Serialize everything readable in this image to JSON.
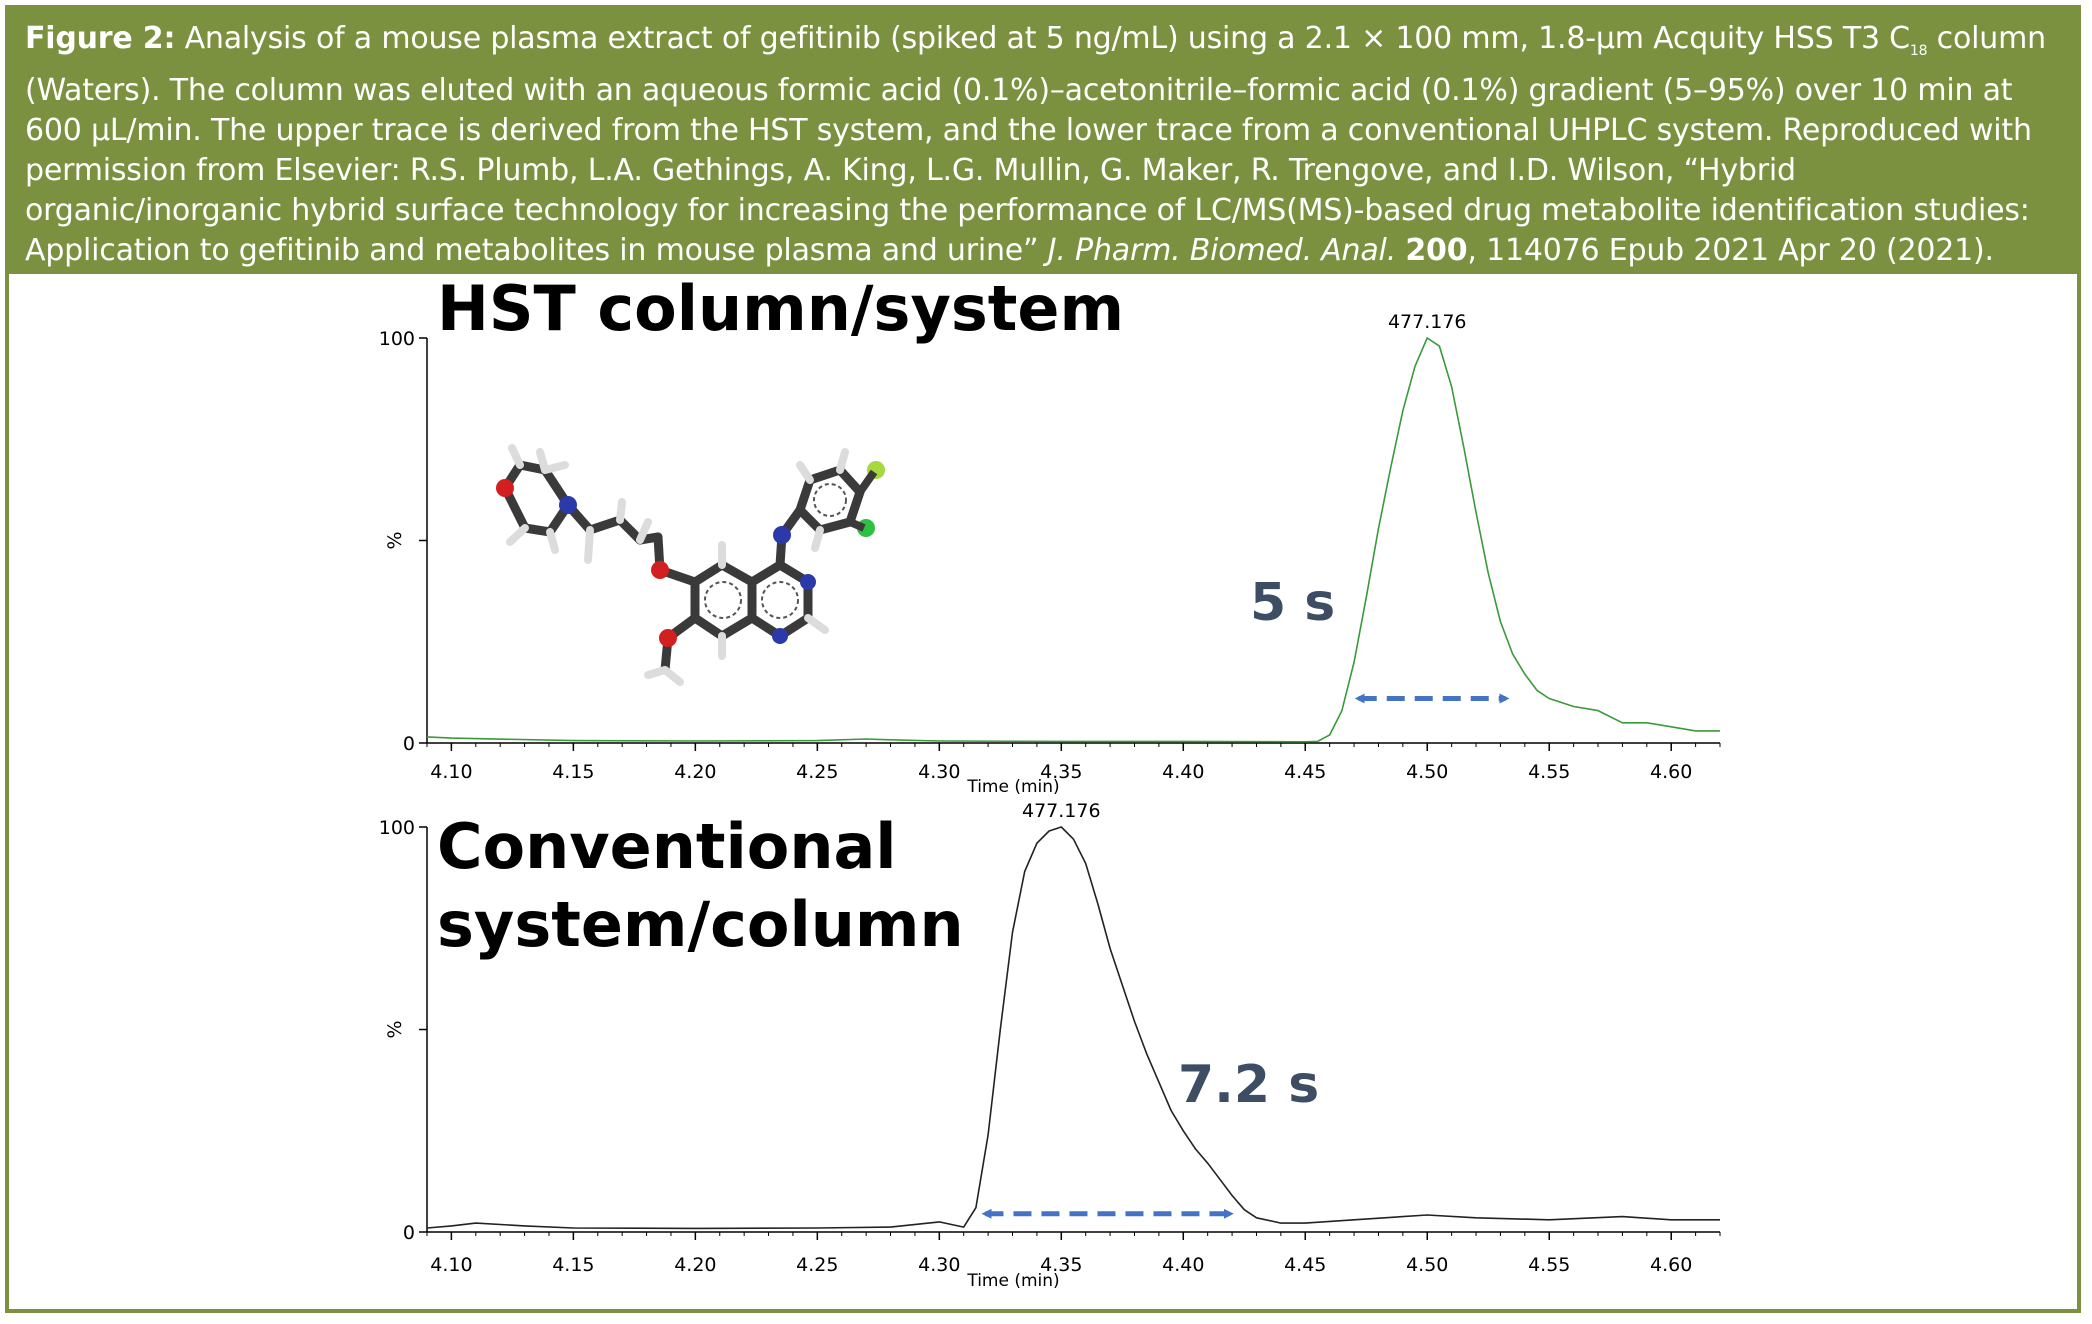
{
  "caption": {
    "label": "Figure 2:",
    "line1": " Analysis of a mouse plasma extract of gefitinib (spiked at 5 ng/mL) using a 2.1 × 100 mm, 1.8-µm Acquity HSS T3 C",
    "subscript": "18",
    "line1b": " column (Waters). The column was eluted with an aqueous formic acid (0.1%)–acetonitrile–formic acid (0.1%) gradient (5–95%) over 10 min at 600 µL/min. The upper trace is derived from the HST system, and the lower trace from a conventional UHPLC system. Reproduced with permission from Elsevier: R.S. Plumb, L.A. Gethings, A. King, L.G. Mullin, G. Maker, R. Trengove, and I.D. Wilson, “Hybrid organic/inorganic hybrid surface technology for increasing the performance of LC/MS(MS)-based drug metabolite identification studies: Application to gefitinib and metabolites in mouse plasma and urine” ",
    "journal": "J. Pharm. Biomed. Anal.",
    "volume": "200",
    "tail": ", 114076 Epub 2021 Apr 20 (2021)."
  },
  "colors": {
    "accent": "#7b9140",
    "hst_trace": "#3a9a3a",
    "conv_trace": "#222222",
    "arrow": "#4472c4",
    "width_label": "#3d4d63"
  },
  "chart_data": [
    {
      "type": "line",
      "title": "HST column/system",
      "xlabel": "Time (min)",
      "ylabel": "%",
      "xlim": [
        4.09,
        4.62
      ],
      "ylim": [
        0,
        100
      ],
      "x_ticks": [
        "4.10",
        "4.15",
        "4.20",
        "4.25",
        "4.30",
        "4.35",
        "4.40",
        "4.45",
        "4.50",
        "4.55",
        "4.60"
      ],
      "y_ticks": [
        "0",
        "100"
      ],
      "peak_label": "477.176",
      "width_label": "5 s",
      "width_arrow": [
        4.467,
        4.537
      ],
      "arrow_y": 11,
      "series": [
        {
          "x": [
            4.09,
            4.1,
            4.15,
            4.2,
            4.25,
            4.27,
            4.28,
            4.3,
            4.35,
            4.4,
            4.45,
            4.455,
            4.46,
            4.465,
            4.47,
            4.475,
            4.48,
            4.485,
            4.49,
            4.495,
            4.5,
            4.505,
            4.51,
            4.515,
            4.52,
            4.525,
            4.53,
            4.535,
            4.54,
            4.545,
            4.55,
            4.555,
            4.56,
            4.57,
            4.58,
            4.59,
            4.6,
            4.61,
            4.62
          ],
          "y": [
            1.5,
            1.2,
            0.6,
            0.5,
            0.6,
            1.0,
            0.8,
            0.5,
            0.4,
            0.4,
            0.3,
            0.4,
            2,
            8,
            20,
            36,
            53,
            68,
            82,
            93,
            100,
            98,
            88,
            73,
            57,
            42,
            30,
            22,
            17,
            13,
            11,
            10,
            9,
            8,
            5,
            5,
            4,
            3,
            3
          ]
        }
      ]
    },
    {
      "type": "line",
      "title": "Conventional system/column",
      "xlabel": "Time (min)",
      "ylabel": "%",
      "xlim": [
        4.09,
        4.62
      ],
      "ylim": [
        0,
        100
      ],
      "x_ticks": [
        "4.10",
        "4.15",
        "4.20",
        "4.25",
        "4.30",
        "4.35",
        "4.40",
        "4.45",
        "4.50",
        "4.55",
        "4.60"
      ],
      "y_ticks": [
        "0",
        "100"
      ],
      "peak_label": "477.176",
      "width_label": "7.2 s",
      "width_arrow": [
        4.314,
        4.424
      ],
      "arrow_y": 4.5,
      "series": [
        {
          "x": [
            4.09,
            4.1,
            4.11,
            4.13,
            4.15,
            4.2,
            4.25,
            4.28,
            4.3,
            4.31,
            4.315,
            4.32,
            4.325,
            4.33,
            4.335,
            4.34,
            4.345,
            4.35,
            4.355,
            4.36,
            4.365,
            4.37,
            4.375,
            4.38,
            4.385,
            4.39,
            4.395,
            4.4,
            4.405,
            4.41,
            4.415,
            4.42,
            4.425,
            4.43,
            4.44,
            4.45,
            4.47,
            4.5,
            4.52,
            4.55,
            4.58,
            4.6,
            4.62
          ],
          "y": [
            1,
            1.5,
            2.2,
            1.5,
            1,
            0.9,
            1,
            1.2,
            2.5,
            1.2,
            6,
            24,
            50,
            74,
            89,
            96,
            99,
            100,
            97,
            91,
            81,
            70,
            61,
            52,
            44,
            37,
            30,
            25,
            20.5,
            17,
            13,
            9,
            5.5,
            3.5,
            2.2,
            2.2,
            3,
            4.2,
            3.5,
            3,
            3.8,
            3,
            3
          ]
        }
      ]
    }
  ]
}
